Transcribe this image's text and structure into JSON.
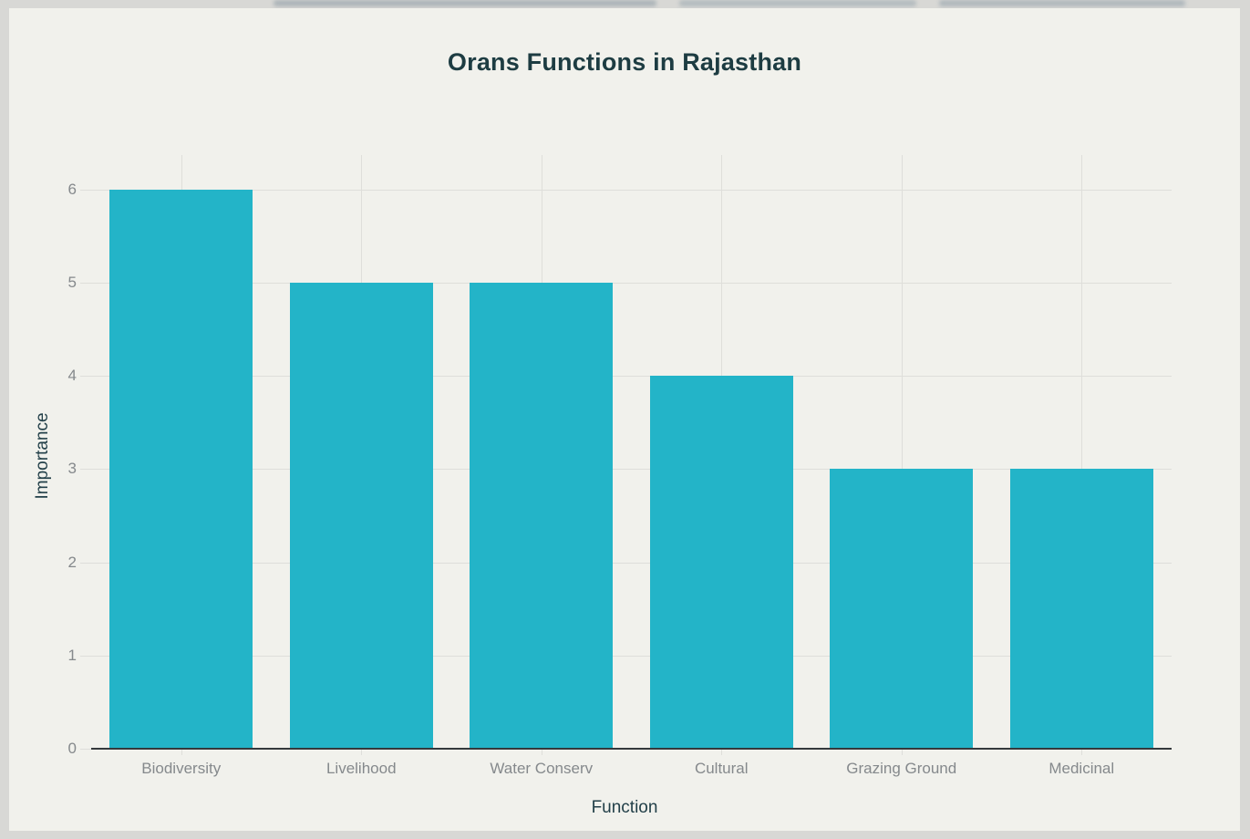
{
  "chart_data": {
    "type": "bar",
    "title": "Orans Functions in Rajasthan",
    "categories": [
      "Biodiversity",
      "Livelihood",
      "Water Conserv",
      "Cultural",
      "Grazing Ground",
      "Medicinal"
    ],
    "values": [
      6,
      5,
      5,
      4,
      3,
      3
    ],
    "xlabel": "Function",
    "ylabel": "Importance",
    "ylim": [
      0,
      6
    ],
    "yticks": [
      0,
      1,
      2,
      3,
      4,
      5,
      6
    ],
    "grid": true,
    "legend": false,
    "bar_color": "#23b4c8"
  },
  "colors": {
    "bar": "#23b4c8",
    "title_text": "#1d3c42",
    "axis_title_text": "#234049",
    "tick_label_text": "#85898c",
    "gridline": "#dededa",
    "axis_line": "#34393c",
    "card_background": "#f1f1ec",
    "page_background": "#d8d8d5"
  }
}
